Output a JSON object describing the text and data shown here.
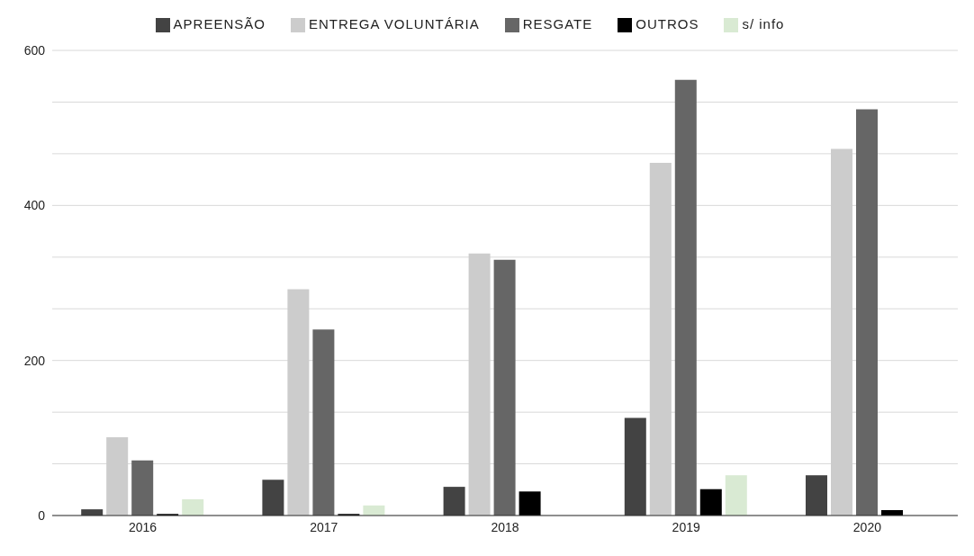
{
  "chart_data": {
    "type": "bar",
    "categories": [
      "2016",
      "2017",
      "2018",
      "2019",
      "2020"
    ],
    "series": [
      {
        "name": "APREENSÃO",
        "color": "#434343",
        "values": [
          8,
          46,
          37,
          126,
          52
        ]
      },
      {
        "name": "ENTREGA VOLUNTÁRIA",
        "color": "#cccccc",
        "values": [
          101,
          292,
          338,
          455,
          473
        ]
      },
      {
        "name": "RESGATE",
        "color": "#666666",
        "values": [
          71,
          240,
          330,
          562,
          524
        ]
      },
      {
        "name": "OUTROS",
        "color": "#000000",
        "values": [
          2,
          2,
          31,
          34,
          7
        ]
      },
      {
        "name": "s/ info",
        "color": "#d9ead3",
        "values": [
          21,
          13,
          0,
          52,
          0
        ]
      }
    ],
    "ylim": [
      0,
      600
    ],
    "yticks": [
      0,
      {
        "value": 66.7,
        "label": null
      },
      {
        "value": 133.3,
        "label": null
      },
      200,
      {
        "value": 266.7,
        "label": null
      },
      {
        "value": 333.3,
        "label": null
      },
      400,
      {
        "value": 466.7,
        "label": null
      },
      {
        "value": 533.3,
        "label": null
      },
      600
    ],
    "grid": "y",
    "legend": "top"
  }
}
